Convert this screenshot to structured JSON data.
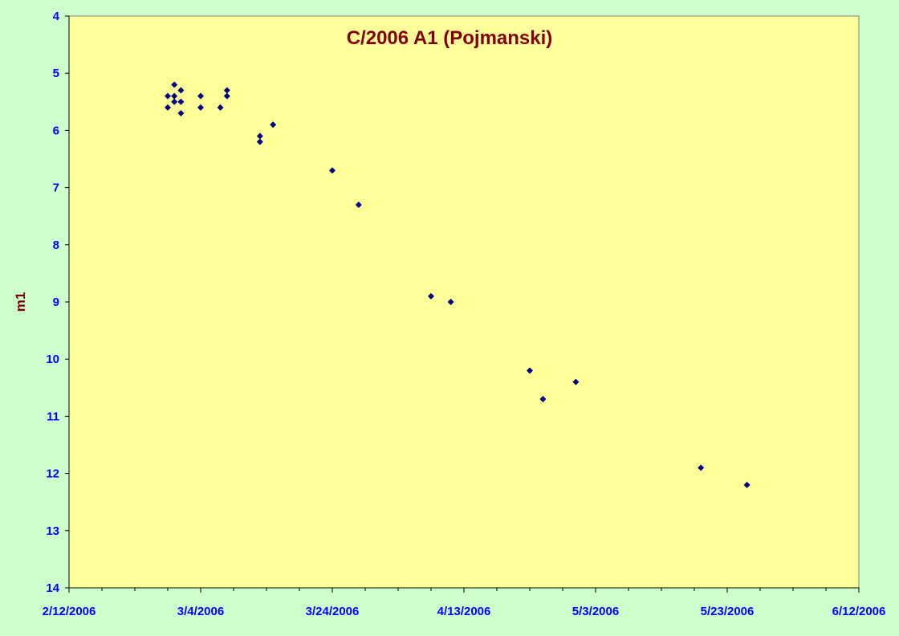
{
  "chart_data": {
    "type": "scatter",
    "title": "C/2006 A1 (Pojmanski)",
    "xlabel": "",
    "ylabel": "m1",
    "x_ticks": [
      "2/12/2006",
      "3/4/2006",
      "3/24/2006",
      "4/13/2006",
      "5/3/2006",
      "5/23/2006",
      "6/12/2006"
    ],
    "xlim": [
      "2006-02-12",
      "2006-06-12"
    ],
    "ylim": [
      4,
      14
    ],
    "y_ticks": [
      4,
      5,
      6,
      7,
      8,
      9,
      10,
      11,
      12,
      13,
      14
    ],
    "y_inverted": true,
    "grid": false,
    "legend": false,
    "colors": {
      "background": "#ccffcc",
      "plot_area": "#ffff99",
      "marker": "#000080",
      "title": "#800000",
      "tick_labels": "#0000ff"
    },
    "points": [
      {
        "x": "2006-02-27",
        "y": 5.4
      },
      {
        "x": "2006-02-27",
        "y": 5.6
      },
      {
        "x": "2006-02-28",
        "y": 5.2
      },
      {
        "x": "2006-02-28",
        "y": 5.4
      },
      {
        "x": "2006-02-28",
        "y": 5.5
      },
      {
        "x": "2006-03-01",
        "y": 5.3
      },
      {
        "x": "2006-03-01",
        "y": 5.5
      },
      {
        "x": "2006-03-01",
        "y": 5.7
      },
      {
        "x": "2006-03-04",
        "y": 5.4
      },
      {
        "x": "2006-03-04",
        "y": 5.6
      },
      {
        "x": "2006-03-07",
        "y": 5.6
      },
      {
        "x": "2006-03-08",
        "y": 5.3
      },
      {
        "x": "2006-03-08",
        "y": 5.4
      },
      {
        "x": "2006-03-13",
        "y": 6.1
      },
      {
        "x": "2006-03-13",
        "y": 6.2
      },
      {
        "x": "2006-03-15",
        "y": 5.9
      },
      {
        "x": "2006-03-24",
        "y": 6.7
      },
      {
        "x": "2006-03-28",
        "y": 7.3
      },
      {
        "x": "2006-04-08",
        "y": 8.9
      },
      {
        "x": "2006-04-11",
        "y": 9.0
      },
      {
        "x": "2006-04-23",
        "y": 10.2
      },
      {
        "x": "2006-04-25",
        "y": 10.7
      },
      {
        "x": "2006-04-30",
        "y": 10.4
      },
      {
        "x": "2006-05-19",
        "y": 11.9
      },
      {
        "x": "2006-05-26",
        "y": 12.2
      }
    ]
  }
}
